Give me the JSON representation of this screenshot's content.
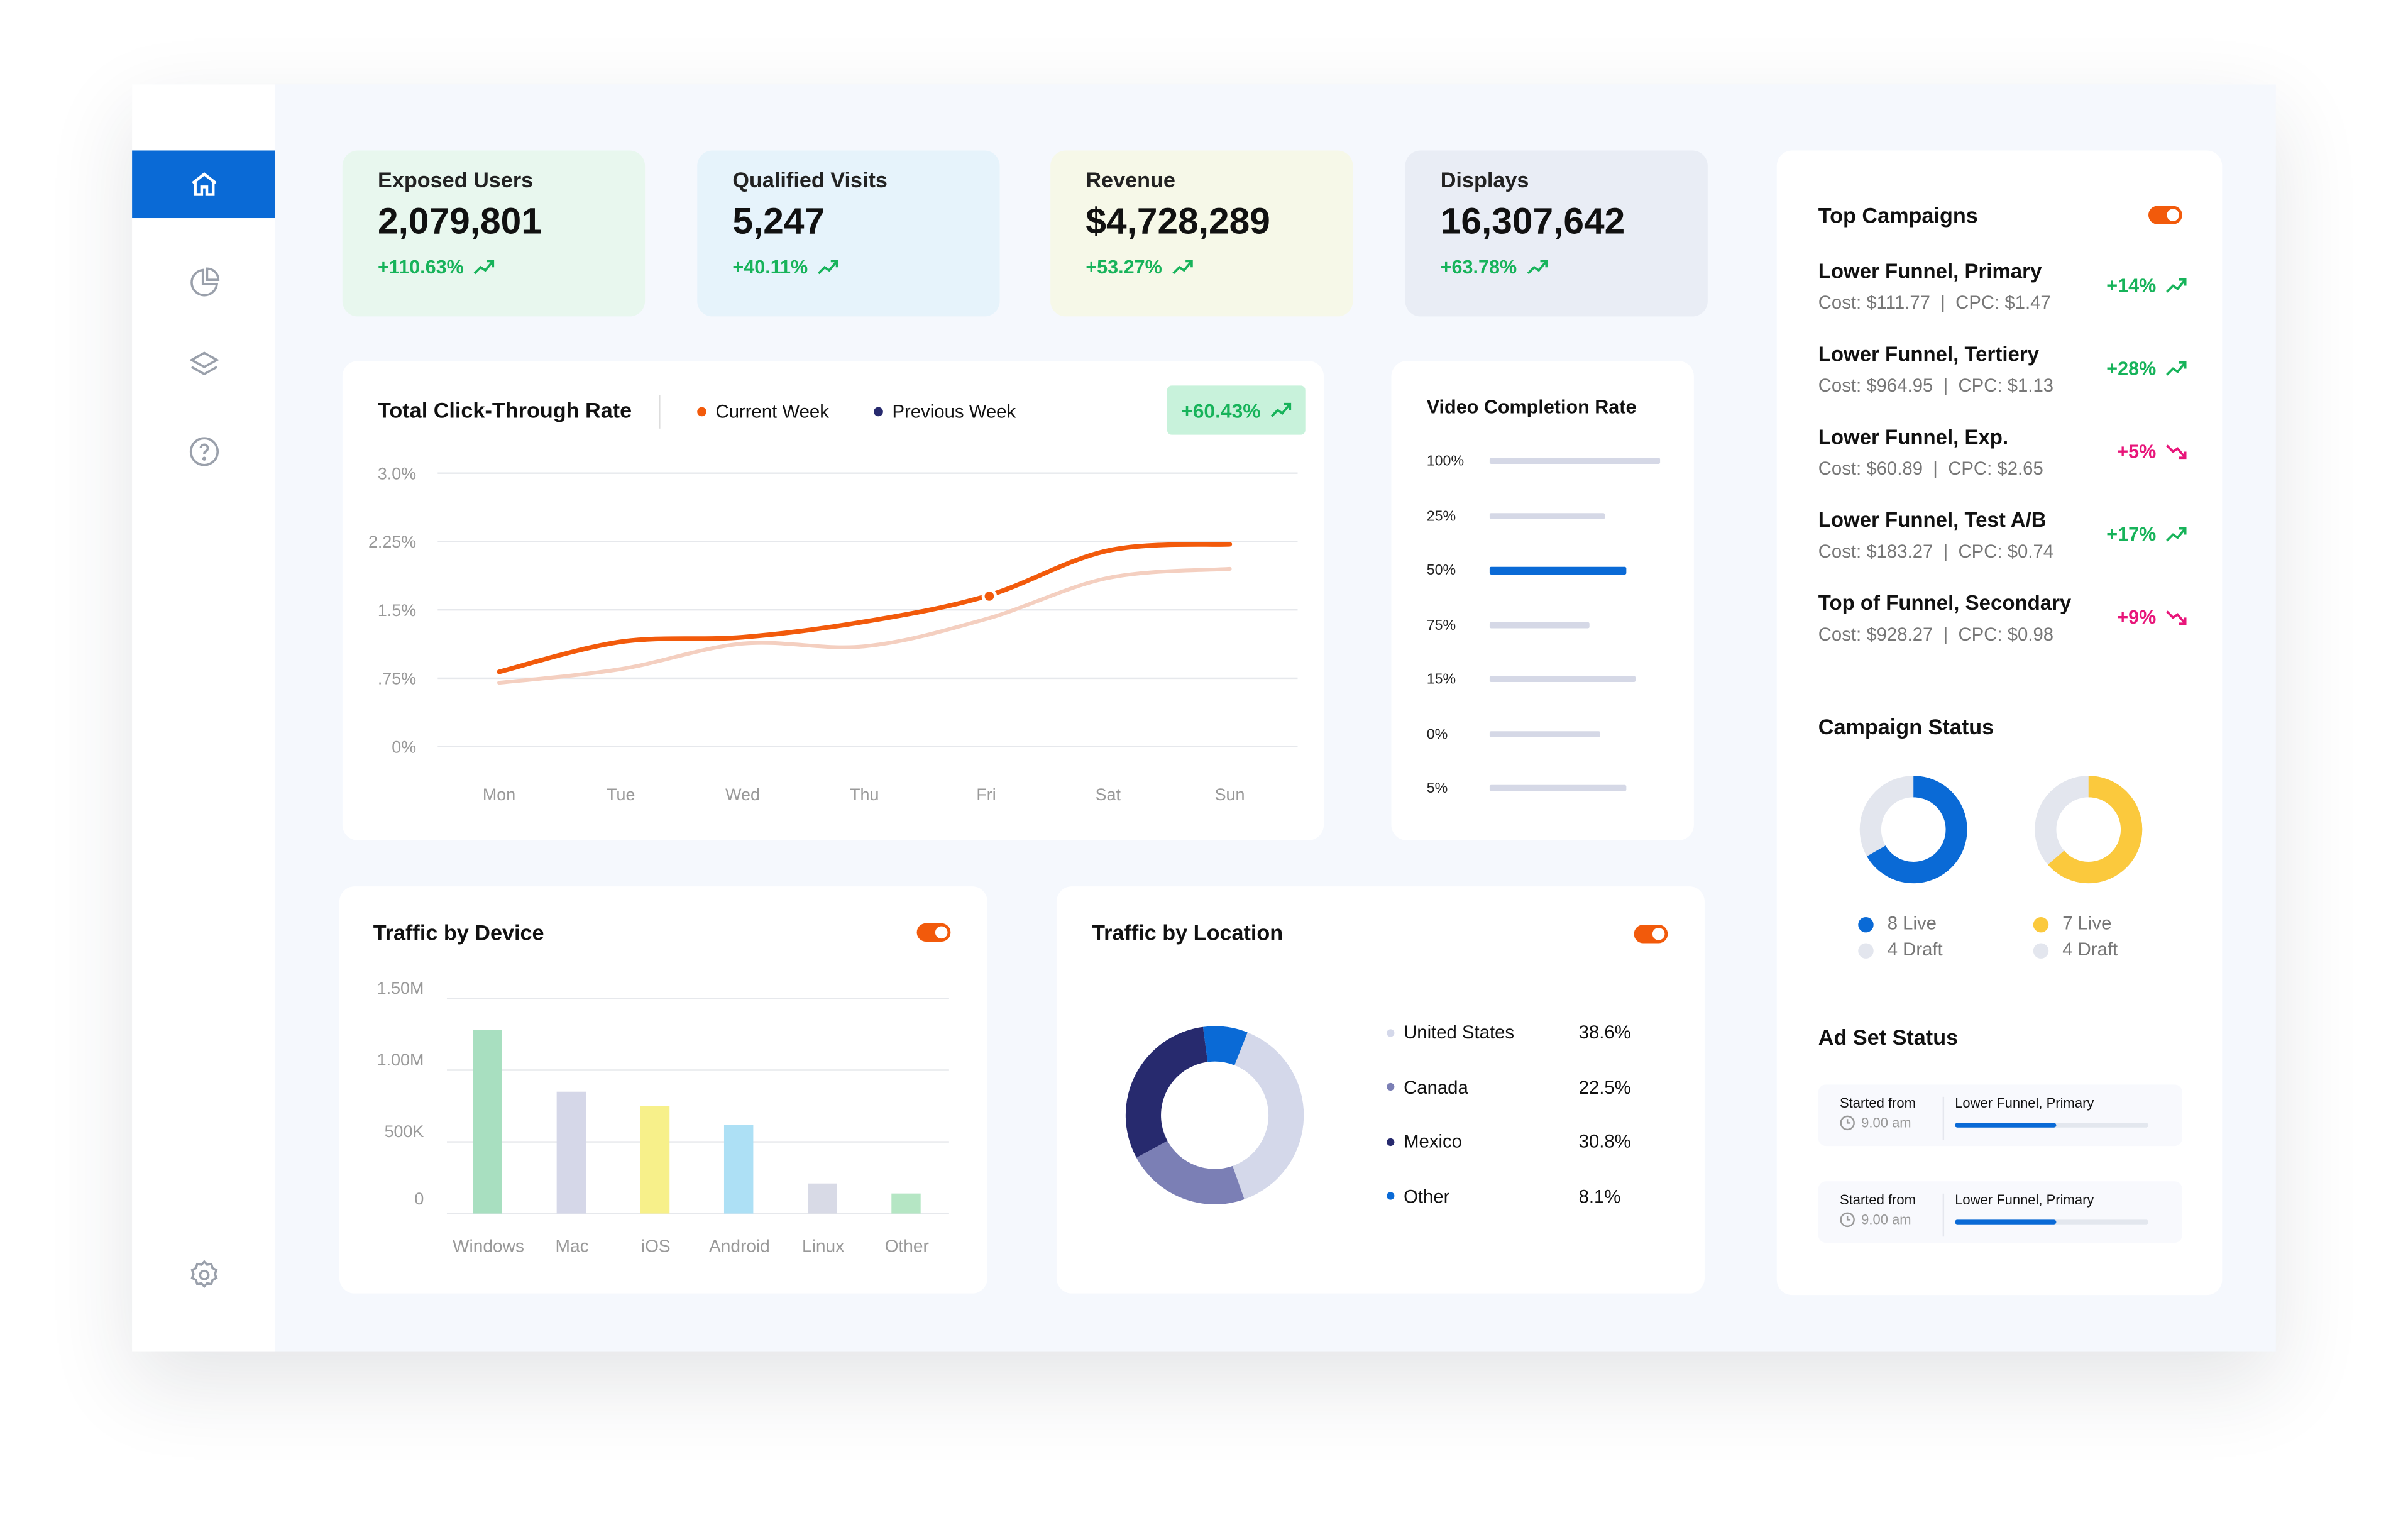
{
  "colors": {
    "accent": "#0a6ad6",
    "orange": "#f25a0b",
    "green": "#17b35a",
    "pink": "#e8167a"
  },
  "sidebar": {
    "items": [
      {
        "icon": "home-icon",
        "active": true
      },
      {
        "icon": "pie-chart-icon"
      },
      {
        "icon": "layers-icon"
      },
      {
        "icon": "help-icon"
      }
    ],
    "settings_icon": "gear-icon"
  },
  "kpis": [
    {
      "title": "Exposed Users",
      "value": "2,079,801",
      "delta": "+110.63%",
      "bg": "#e8f7ee"
    },
    {
      "title": "Qualified Visits",
      "value": "5,247",
      "delta": "+40.11%",
      "bg": "#e6f3fb"
    },
    {
      "title": "Revenue",
      "value": "$4,728,289",
      "delta": "+53.27%",
      "bg": "#f6f8e8"
    },
    {
      "title": "Displays",
      "value": "16,307,642",
      "delta": "+63.78%",
      "bg": "#e9edf5"
    }
  ],
  "ctr": {
    "title": "Total Click-Through Rate",
    "legend_current": "Current Week",
    "legend_previous": "Previous Week",
    "badge": "+60.43%"
  },
  "video": {
    "title": "Video Completion Rate"
  },
  "device": {
    "title": "Traffic by Device"
  },
  "location": {
    "title": "Traffic by Location"
  },
  "campaigns": {
    "title": "Top Campaigns",
    "items": [
      {
        "name": "Lower Funnel, Primary",
        "cost": "Cost: $111.77  |  CPC: $1.47",
        "delta": "+14%",
        "trend": "up"
      },
      {
        "name": "Lower Funnel, Tertiery",
        "cost": "Cost: $964.95  |  CPC: $1.13",
        "delta": "+28%",
        "trend": "up"
      },
      {
        "name": "Lower Funnel, Exp.",
        "cost": "Cost: $60.89  |  CPC: $2.65",
        "delta": "+5%",
        "trend": "down"
      },
      {
        "name": "Lower Funnel, Test A/B",
        "cost": "Cost: $183.27  |  CPC: $0.74",
        "delta": "+17%",
        "trend": "up"
      },
      {
        "name": "Top of Funnel, Secondary",
        "cost": "Cost: $928.27  |  CPC: $0.98",
        "delta": "+9%",
        "trend": "down"
      }
    ]
  },
  "campaign_status": {
    "title": "Campaign Status",
    "donuts": [
      {
        "color": "#0a6ad6",
        "live": 8,
        "draft": 4,
        "live_label": "8 Live",
        "draft_label": "4 Draft"
      },
      {
        "color": "#fbc93d",
        "live": 7,
        "draft": 4,
        "live_label": "7 Live",
        "draft_label": "4 Draft"
      }
    ]
  },
  "ad_set": {
    "title": "Ad Set Status",
    "items": [
      {
        "label": "Started from",
        "time": "9.00 am",
        "name": "Lower Funnel, Primary",
        "progress": 0.52
      },
      {
        "label": "Started from",
        "time": "9.00 am",
        "name": "Lower Funnel, Primary",
        "progress": 0.52
      }
    ]
  },
  "chart_data": [
    {
      "type": "line",
      "title": "Total Click-Through Rate",
      "categories": [
        "Mon",
        "Tue",
        "Wed",
        "Thu",
        "Fri",
        "Sat",
        "Sun"
      ],
      "yticks": [
        "0%",
        ".75%",
        "1.5%",
        "2.25%",
        "3.0%"
      ],
      "ylim": [
        0,
        3.0
      ],
      "grid": true,
      "series": [
        {
          "name": "Current Week",
          "color": "#f25a0b",
          "values": [
            0.82,
            1.15,
            1.2,
            1.37,
            1.65,
            2.15,
            2.22
          ]
        },
        {
          "name": "Previous Week",
          "color": "#f4cfc0",
          "values": [
            0.7,
            0.85,
            1.13,
            1.1,
            1.4,
            1.85,
            1.95
          ]
        }
      ]
    },
    {
      "type": "bar",
      "title": "Video Completion Rate",
      "orientation": "horizontal",
      "categories": [
        "100%",
        "25%",
        "50%",
        "75%",
        "15%",
        "0%",
        "5%"
      ],
      "values": [
        1.0,
        0.68,
        0.8,
        0.59,
        0.86,
        0.65,
        0.8
      ],
      "highlight": "50%"
    },
    {
      "type": "bar",
      "title": "Traffic by Device",
      "categories": [
        "Windows",
        "Mac",
        "iOS",
        "Android",
        "Linux",
        "Other"
      ],
      "values": [
        1280000,
        850000,
        750000,
        620000,
        210000,
        140000
      ],
      "colors": [
        "#a8dfc0",
        "#d5d7e8",
        "#f7f08a",
        "#ade0f5",
        "#d8dae6",
        "#b5e6c4"
      ],
      "yticks": [
        "0",
        "500K",
        "1.00M",
        "1.50M"
      ],
      "ylim": [
        0,
        1500000
      ],
      "grid": true
    },
    {
      "type": "pie",
      "title": "Traffic by Location",
      "donut": true,
      "labels": [
        "United States",
        "Canada",
        "Mexico",
        "Other"
      ],
      "values": [
        "38.6%",
        "22.5%",
        "30.8%",
        "8.1%"
      ],
      "numbers": [
        38.6,
        22.5,
        30.8,
        8.1
      ],
      "colors": [
        "#d4d8ea",
        "#7b7fb5",
        "#272a6e",
        "#0a6ad6"
      ]
    }
  ]
}
